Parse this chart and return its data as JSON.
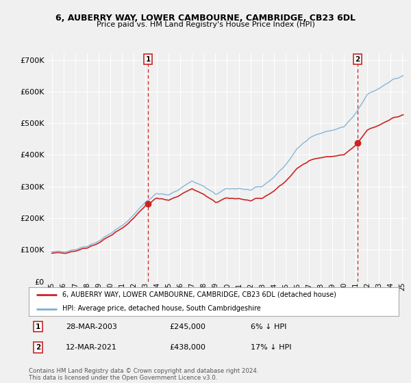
{
  "title_line1": "6, AUBERRY WAY, LOWER CAMBOURNE, CAMBRIDGE, CB23 6DL",
  "title_line2": "Price paid vs. HM Land Registry's House Price Index (HPI)",
  "legend_line1": "6, AUBERRY WAY, LOWER CAMBOURNE, CAMBRIDGE, CB23 6DL (detached house)",
  "legend_line2": "HPI: Average price, detached house, South Cambridgeshire",
  "annotation1": {
    "num": "1",
    "date": "28-MAR-2003",
    "price": "£245,000",
    "pct": "6% ↓ HPI"
  },
  "annotation2": {
    "num": "2",
    "date": "12-MAR-2021",
    "price": "£438,000",
    "pct": "17% ↓ HPI"
  },
  "footnote": "Contains HM Land Registry data © Crown copyright and database right 2024.\nThis data is licensed under the Open Government Licence v3.0.",
  "sale1_year": 2003.23,
  "sale1_value": 245000,
  "sale2_year": 2021.19,
  "sale2_value": 438000,
  "hpi_color": "#7bafd4",
  "price_color": "#cc2222",
  "vline_color": "#cc2222",
  "dot_color": "#cc2222",
  "background_color": "#f0f0f0",
  "grid_color": "#ffffff",
  "ylim": [
    0,
    720000
  ],
  "yticks": [
    0,
    100000,
    200000,
    300000,
    400000,
    500000,
    600000,
    700000
  ],
  "xlim_start": 1994.6,
  "xlim_end": 2025.4
}
